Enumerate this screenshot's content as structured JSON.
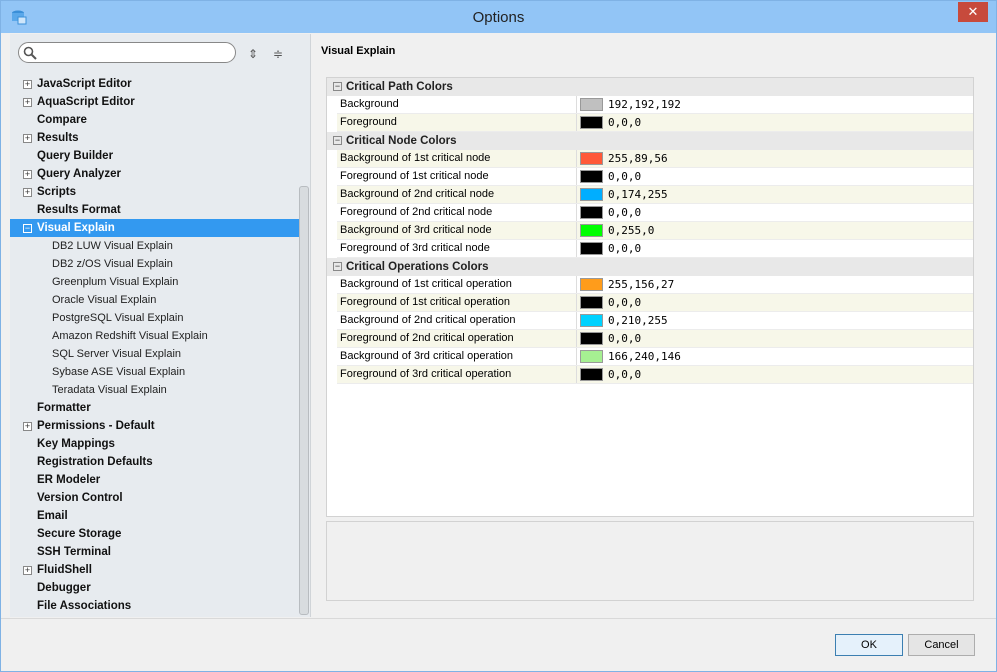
{
  "window": {
    "title": "Options",
    "close_icon": "close-icon"
  },
  "search": {
    "placeholder": "",
    "value": ""
  },
  "tree": [
    {
      "label": "JavaScript Editor",
      "level": 0,
      "expander": "+"
    },
    {
      "label": "AquaScript Editor",
      "level": 0,
      "expander": "+"
    },
    {
      "label": "Compare",
      "level": 0
    },
    {
      "label": "Results",
      "level": 0,
      "expander": "+"
    },
    {
      "label": "Query Builder",
      "level": 0
    },
    {
      "label": "Query Analyzer",
      "level": 0,
      "expander": "+"
    },
    {
      "label": "Scripts",
      "level": 0,
      "expander": "+"
    },
    {
      "label": "Results Format",
      "level": 0
    },
    {
      "label": "Visual Explain",
      "level": 0,
      "expander": "−",
      "selected": true
    },
    {
      "label": "DB2 LUW Visual Explain",
      "level": 1
    },
    {
      "label": "DB2 z/OS Visual Explain",
      "level": 1
    },
    {
      "label": "Greenplum Visual Explain",
      "level": 1
    },
    {
      "label": "Oracle Visual Explain",
      "level": 1
    },
    {
      "label": "PostgreSQL Visual Explain",
      "level": 1
    },
    {
      "label": "Amazon Redshift Visual Explain",
      "level": 1
    },
    {
      "label": "SQL Server Visual Explain",
      "level": 1
    },
    {
      "label": "Sybase ASE Visual Explain",
      "level": 1
    },
    {
      "label": "Teradata Visual Explain",
      "level": 1
    },
    {
      "label": "Formatter",
      "level": 0
    },
    {
      "label": "Permissions - Default",
      "level": 0,
      "expander": "+"
    },
    {
      "label": "Key Mappings",
      "level": 0
    },
    {
      "label": "Registration Defaults",
      "level": 0
    },
    {
      "label": "ER Modeler",
      "level": 0
    },
    {
      "label": "Version Control",
      "level": 0
    },
    {
      "label": "Email",
      "level": 0
    },
    {
      "label": "Secure Storage",
      "level": 0
    },
    {
      "label": "SSH Terminal",
      "level": 0
    },
    {
      "label": "FluidShell",
      "level": 0,
      "expander": "+"
    },
    {
      "label": "Debugger",
      "level": 0
    },
    {
      "label": "File Associations",
      "level": 0
    }
  ],
  "panel": {
    "title": "Visual Explain",
    "groups": [
      {
        "label": "Critical Path Colors",
        "rows": [
          {
            "key": "Background",
            "value": "192,192,192",
            "color": "#c0c0c0"
          },
          {
            "key": "Foreground",
            "value": "0,0,0",
            "color": "#000000"
          }
        ]
      },
      {
        "label": "Critical Node Colors",
        "rows": [
          {
            "key": "Background of 1st critical node",
            "value": "255,89,56",
            "color": "#ff5938"
          },
          {
            "key": "Foreground of 1st critical node",
            "value": "0,0,0",
            "color": "#000000"
          },
          {
            "key": "Background of 2nd critical node",
            "value": "0,174,255",
            "color": "#00aeff"
          },
          {
            "key": "Foreground of 2nd critical node",
            "value": "0,0,0",
            "color": "#000000"
          },
          {
            "key": "Background of 3rd critical node",
            "value": "0,255,0",
            "color": "#00ff00"
          },
          {
            "key": "Foreground of 3rd critical node",
            "value": "0,0,0",
            "color": "#000000"
          }
        ]
      },
      {
        "label": "Critical Operations Colors",
        "rows": [
          {
            "key": "Background of 1st critical operation",
            "value": "255,156,27",
            "color": "#ff9c1b"
          },
          {
            "key": "Foreground of 1st critical operation",
            "value": "0,0,0",
            "color": "#000000"
          },
          {
            "key": "Background of 2nd critical operation",
            "value": "0,210,255",
            "color": "#00d2ff"
          },
          {
            "key": "Foreground of 2nd critical operation",
            "value": "0,0,0",
            "color": "#000000"
          },
          {
            "key": "Background of 3rd critical operation",
            "value": "166,240,146",
            "color": "#a6f092"
          },
          {
            "key": "Foreground of 3rd critical operation",
            "value": "0,0,0",
            "color": "#000000"
          }
        ]
      }
    ]
  },
  "buttons": {
    "ok": "OK",
    "cancel": "Cancel"
  }
}
